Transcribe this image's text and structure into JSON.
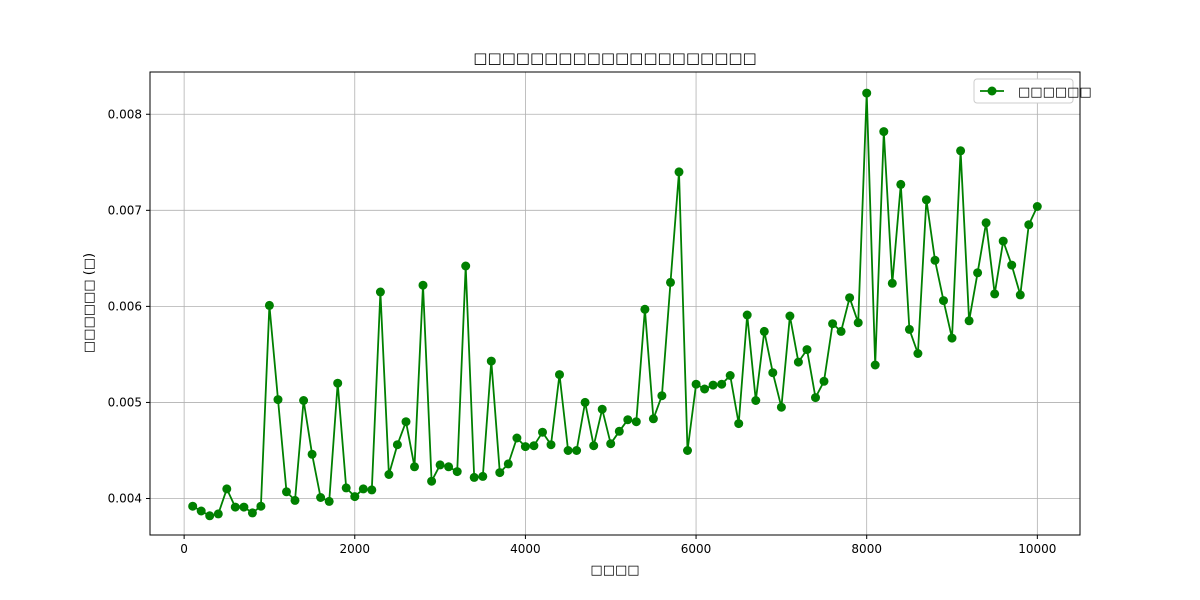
{
  "chart_data": {
    "type": "line",
    "title": "□□□□□□□□□□□□□□□□□□□□",
    "xlabel": "□□□□",
    "ylabel": "□□□□□□ (□)",
    "xlim": [
      -400,
      10500
    ],
    "ylim": [
      0.00362,
      0.00844
    ],
    "xticks": [
      0,
      2000,
      4000,
      6000,
      8000,
      10000
    ],
    "xtick_labels": [
      "0",
      "2000",
      "4000",
      "6000",
      "8000",
      "10000"
    ],
    "yticks": [
      0.004,
      0.005,
      0.006,
      0.007,
      0.008
    ],
    "ytick_labels": [
      "0.004",
      "0.005",
      "0.006",
      "0.007",
      "0.008"
    ],
    "grid": true,
    "legend_position": "top-right",
    "series": [
      {
        "name": "□□□□□□",
        "color": "#008000",
        "marker": "circle",
        "x": [
          100,
          200,
          300,
          400,
          500,
          600,
          700,
          800,
          900,
          1000,
          1100,
          1200,
          1300,
          1400,
          1500,
          1600,
          1700,
          1800,
          1900,
          2000,
          2100,
          2200,
          2300,
          2400,
          2500,
          2600,
          2700,
          2800,
          2900,
          3000,
          3100,
          3200,
          3300,
          3400,
          3500,
          3600,
          3700,
          3800,
          3900,
          4000,
          4100,
          4200,
          4300,
          4400,
          4500,
          4600,
          4700,
          4800,
          4900,
          5000,
          5100,
          5200,
          5300,
          5400,
          5500,
          5600,
          5700,
          5800,
          5900,
          6000,
          6100,
          6200,
          6300,
          6400,
          6500,
          6600,
          6700,
          6800,
          6900,
          7000,
          7100,
          7200,
          7300,
          7400,
          7500,
          7600,
          7700,
          7800,
          7900,
          8000,
          8100,
          8200,
          8300,
          8400,
          8500,
          8600,
          8700,
          8800,
          8900,
          9000,
          9100,
          9200,
          9300,
          9400,
          9500,
          9600,
          9700,
          9800,
          9900,
          10000
        ],
        "y": [
          0.00392,
          0.00387,
          0.00382,
          0.00384,
          0.0041,
          0.00391,
          0.00391,
          0.00385,
          0.00392,
          0.00601,
          0.00503,
          0.00407,
          0.00398,
          0.00502,
          0.00446,
          0.00401,
          0.00397,
          0.0052,
          0.00411,
          0.00402,
          0.0041,
          0.00409,
          0.00615,
          0.00425,
          0.00456,
          0.0048,
          0.00433,
          0.00622,
          0.00418,
          0.00435,
          0.00433,
          0.00428,
          0.00642,
          0.00422,
          0.00423,
          0.00543,
          0.00427,
          0.00436,
          0.00463,
          0.00454,
          0.00455,
          0.00469,
          0.00456,
          0.00529,
          0.0045,
          0.0045,
          0.005,
          0.00455,
          0.00493,
          0.00457,
          0.0047,
          0.00482,
          0.0048,
          0.00597,
          0.00483,
          0.00507,
          0.00625,
          0.0074,
          0.0045,
          0.00519,
          0.00514,
          0.00518,
          0.00519,
          0.00528,
          0.00478,
          0.00591,
          0.00502,
          0.00574,
          0.00531,
          0.00495,
          0.0059,
          0.00542,
          0.00555,
          0.00505,
          0.00522,
          0.00582,
          0.00574,
          0.00609,
          0.00583,
          0.00822,
          0.00539,
          0.00782,
          0.00624,
          0.00727,
          0.00576,
          0.00551,
          0.00711,
          0.00648,
          0.00606,
          0.00567,
          0.00762,
          0.00585,
          0.00635,
          0.00687,
          0.00613,
          0.00668,
          0.00643,
          0.00612,
          0.00685,
          0.00704
        ]
      }
    ]
  }
}
